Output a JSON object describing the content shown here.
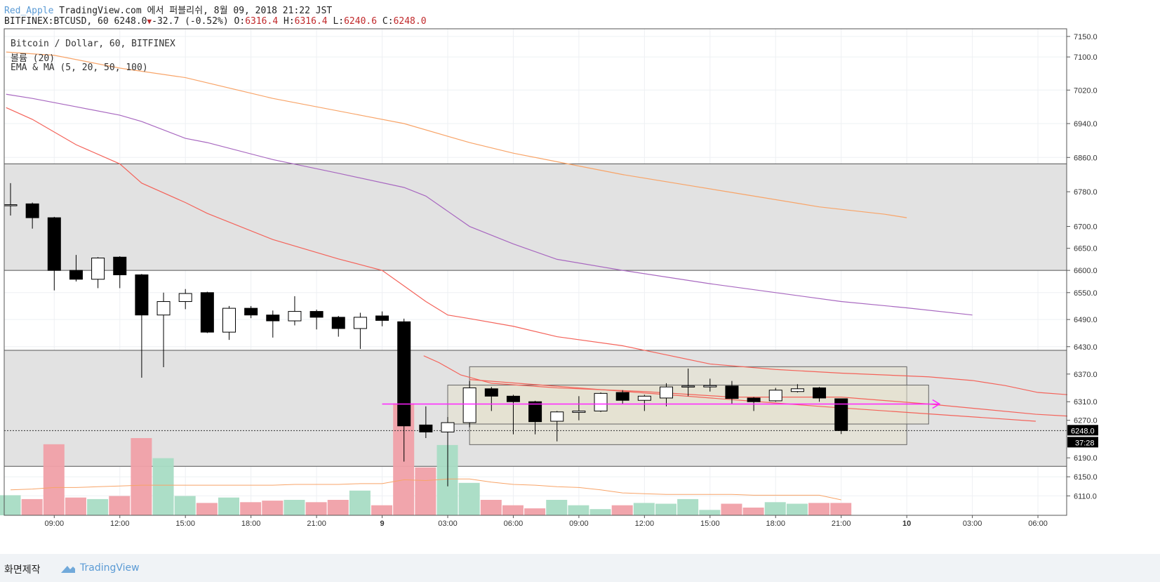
{
  "header": {
    "author": "Red_Apple",
    "published": "TradingView.com 에서 퍼블리쉬, 8월 09, 2018 21:22 JST",
    "symbol": "BITFINEX:BTCUSD, 60",
    "last": "6248.0",
    "change": "-32.7 (-0.52%)",
    "o_label": "O:",
    "o": "6316.4",
    "h_label": "H:",
    "h": "6316.4",
    "l_label": "L:",
    "l": "6240.6",
    "c_label": "C:",
    "c": "6248.0"
  },
  "legend": {
    "line1": "Bitcoin / Dollar, 60, BITFINEX",
    "line2": "볼륨 (20)",
    "line3": "EMA & MA (5, 20, 50, 100)"
  },
  "footer": {
    "made_by": "화면제작",
    "brand": "TradingView"
  },
  "colors": {
    "up_body": "#ffffff",
    "down_body": "#000000",
    "vol_up": "#a8dcc4",
    "vol_down": "#f0a0a8",
    "ema_red": "#f4635a",
    "ma_purple": "#a868c0",
    "ma_orange": "#f8a468",
    "vol_ma": "#f8a468",
    "arrow": "#ff22ff",
    "zone": "#e2e2e2",
    "range_box": "#e6e2ce",
    "price_tag": "#000000"
  },
  "chart_data": {
    "type": "candlestick",
    "title": "Bitcoin / Dollar, 60, BITFINEX",
    "y_ticks": [
      "7150.0",
      "7100.0",
      "7020.0",
      "6940.0",
      "6860.0",
      "6780.0",
      "6700.0",
      "6650.0",
      "6600.0",
      "6550.0",
      "6490.0",
      "6430.0",
      "6370.0",
      "6310.0",
      "6270.0",
      "6190.0",
      "6150.0",
      "6110.0"
    ],
    "y_scale": "log",
    "ylim": [
      6087,
      7155
    ],
    "x_ticks": [
      "09:00",
      "12:00",
      "15:00",
      "18:00",
      "21:00",
      "9",
      "03:00",
      "06:00",
      "09:00",
      "12:00",
      "15:00",
      "18:00",
      "21:00",
      "10",
      "03:00",
      "06:00"
    ],
    "bar_interval_hours": 1,
    "first_bar": "2018-08-08 07:00",
    "last_price_label": "6248.0",
    "countdown_label": "37:28",
    "candles": [
      {
        "t": "08-08 07:00",
        "o": 6750,
        "h": 6800,
        "l": 6725,
        "c": 6750
      },
      {
        "t": "08-08 08:00",
        "o": 6752,
        "h": 6755,
        "l": 6695,
        "c": 6720
      },
      {
        "t": "08-08 09:00",
        "o": 6720,
        "h": 6722,
        "l": 6555,
        "c": 6600
      },
      {
        "t": "08-08 10:00",
        "o": 6600,
        "h": 6635,
        "l": 6575,
        "c": 6580
      },
      {
        "t": "08-08 11:00",
        "o": 6580,
        "h": 6630,
        "l": 6560,
        "c": 6628
      },
      {
        "t": "08-08 12:00",
        "o": 6630,
        "h": 6632,
        "l": 6560,
        "c": 6590
      },
      {
        "t": "08-08 13:00",
        "o": 6590,
        "h": 6592,
        "l": 6362,
        "c": 6500
      },
      {
        "t": "08-08 14:00",
        "o": 6500,
        "h": 6550,
        "l": 6385,
        "c": 6530
      },
      {
        "t": "08-08 15:00",
        "o": 6530,
        "h": 6558,
        "l": 6513,
        "c": 6548
      },
      {
        "t": "08-08 16:00",
        "o": 6550,
        "h": 6552,
        "l": 6460,
        "c": 6462
      },
      {
        "t": "08-08 17:00",
        "o": 6462,
        "h": 6520,
        "l": 6445,
        "c": 6515
      },
      {
        "t": "08-08 18:00",
        "o": 6515,
        "h": 6520,
        "l": 6493,
        "c": 6500
      },
      {
        "t": "08-08 19:00",
        "o": 6500,
        "h": 6510,
        "l": 6450,
        "c": 6487
      },
      {
        "t": "08-08 20:00",
        "o": 6487,
        "h": 6542,
        "l": 6477,
        "c": 6508
      },
      {
        "t": "08-08 21:00",
        "o": 6508,
        "h": 6512,
        "l": 6468,
        "c": 6495
      },
      {
        "t": "08-08 22:00",
        "o": 6495,
        "h": 6498,
        "l": 6452,
        "c": 6470
      },
      {
        "t": "08-08 23:00",
        "o": 6470,
        "h": 6505,
        "l": 6425,
        "c": 6495
      },
      {
        "t": "08-09 00:00",
        "o": 6498,
        "h": 6508,
        "l": 6475,
        "c": 6488
      },
      {
        "t": "08-09 01:00",
        "o": 6485,
        "h": 6492,
        "l": 6182,
        "c": 6258
      },
      {
        "t": "08-09 02:00",
        "o": 6260,
        "h": 6300,
        "l": 6232,
        "c": 6245
      },
      {
        "t": "08-09 03:00",
        "o": 6245,
        "h": 6277,
        "l": 6130,
        "c": 6265
      },
      {
        "t": "08-09 04:00",
        "o": 6265,
        "h": 6355,
        "l": 6255,
        "c": 6340
      },
      {
        "t": "08-09 05:00",
        "o": 6338,
        "h": 6342,
        "l": 6290,
        "c": 6322
      },
      {
        "t": "08-09 06:00",
        "o": 6322,
        "h": 6325,
        "l": 6240,
        "c": 6310
      },
      {
        "t": "08-09 07:00",
        "o": 6310,
        "h": 6312,
        "l": 6240,
        "c": 6267
      },
      {
        "t": "08-09 08:00",
        "o": 6268,
        "h": 6290,
        "l": 6225,
        "c": 6288
      },
      {
        "t": "08-09 09:00",
        "o": 6287,
        "h": 6322,
        "l": 6270,
        "c": 6290
      },
      {
        "t": "08-09 10:00",
        "o": 6290,
        "h": 6330,
        "l": 6288,
        "c": 6328
      },
      {
        "t": "08-09 11:00",
        "o": 6330,
        "h": 6335,
        "l": 6305,
        "c": 6313
      },
      {
        "t": "08-09 12:00",
        "o": 6313,
        "h": 6325,
        "l": 6290,
        "c": 6322
      },
      {
        "t": "08-09 13:00",
        "o": 6318,
        "h": 6350,
        "l": 6300,
        "c": 6342
      },
      {
        "t": "08-09 14:00",
        "o": 6342,
        "h": 6382,
        "l": 6322,
        "c": 6344
      },
      {
        "t": "08-09 15:00",
        "o": 6342,
        "h": 6360,
        "l": 6332,
        "c": 6345
      },
      {
        "t": "08-09 16:00",
        "o": 6344,
        "h": 6355,
        "l": 6305,
        "c": 6317
      },
      {
        "t": "08-09 17:00",
        "o": 6318,
        "h": 6320,
        "l": 6290,
        "c": 6310
      },
      {
        "t": "08-09 18:00",
        "o": 6312,
        "h": 6340,
        "l": 6310,
        "c": 6335
      },
      {
        "t": "08-09 19:00",
        "o": 6332,
        "h": 6348,
        "l": 6330,
        "c": 6338
      },
      {
        "t": "08-09 20:00",
        "o": 6340,
        "h": 6342,
        "l": 6310,
        "c": 6318
      },
      {
        "t": "08-09 21:00",
        "o": 6316.4,
        "h": 6316.4,
        "l": 6240.6,
        "c": 6248
      }
    ],
    "volume": [
      0.26,
      0.21,
      0.92,
      0.23,
      0.21,
      0.25,
      1.0,
      0.74,
      0.25,
      0.16,
      0.23,
      0.17,
      0.19,
      0.2,
      0.17,
      0.2,
      0.32,
      0.13,
      1.45,
      0.62,
      0.91,
      0.42,
      0.2,
      0.13,
      0.09,
      0.2,
      0.13,
      0.08,
      0.13,
      0.16,
      0.15,
      0.21,
      0.07,
      0.15,
      0.1,
      0.17,
      0.15,
      0.16,
      0.16
    ],
    "volume_ma20": [
      0.33,
      0.34,
      0.36,
      0.36,
      0.37,
      0.38,
      0.39,
      0.39,
      0.39,
      0.39,
      0.39,
      0.39,
      0.39,
      0.4,
      0.4,
      0.4,
      0.41,
      0.41,
      0.46,
      0.45,
      0.47,
      0.47,
      0.43,
      0.4,
      0.39,
      0.37,
      0.36,
      0.33,
      0.29,
      0.28,
      0.27,
      0.27,
      0.27,
      0.27,
      0.26,
      0.26,
      0.26,
      0.26,
      0.2
    ],
    "ema5": [
      [
        18.9,
        6410
      ],
      [
        19.6,
        6395
      ],
      [
        20.6,
        6368
      ],
      [
        22.0,
        6350
      ],
      [
        25.0,
        6340
      ],
      [
        29.0,
        6332
      ],
      [
        33.0,
        6320
      ],
      [
        38.0,
        6320
      ],
      [
        42.0,
        6305
      ],
      [
        46.9,
        6283
      ],
      [
        60,
        6248
      ]
    ],
    "ma20": [
      [
        -0.2,
        6978
      ],
      [
        1,
        6950
      ],
      [
        3,
        6890
      ],
      [
        5,
        6845
      ],
      [
        6,
        6800
      ],
      [
        8,
        6755
      ],
      [
        9,
        6730
      ],
      [
        12,
        6670
      ],
      [
        15,
        6626
      ],
      [
        16,
        6613
      ],
      [
        17,
        6600
      ],
      [
        18,
        6565
      ],
      [
        19,
        6530
      ],
      [
        20,
        6500
      ],
      [
        21,
        6492
      ],
      [
        23,
        6475
      ],
      [
        25,
        6452
      ],
      [
        28,
        6432
      ],
      [
        30,
        6412
      ],
      [
        32,
        6392
      ],
      [
        35,
        6380
      ],
      [
        38,
        6372
      ],
      [
        42,
        6364
      ],
      [
        44,
        6356
      ],
      [
        45.5,
        6345
      ],
      [
        47,
        6330
      ],
      [
        51,
        6316
      ],
      [
        55,
        6305
      ],
      [
        58,
        6298
      ]
    ],
    "ma50": [
      [
        -0.2,
        7010
      ],
      [
        1,
        7000
      ],
      [
        3,
        6980
      ],
      [
        5,
        6960
      ],
      [
        6,
        6945
      ],
      [
        8,
        6905
      ],
      [
        9,
        6895
      ],
      [
        12,
        6855
      ],
      [
        15,
        6823
      ],
      [
        18,
        6790
      ],
      [
        19,
        6770
      ],
      [
        21,
        6700
      ],
      [
        23,
        6660
      ],
      [
        25,
        6625
      ],
      [
        28,
        6600
      ],
      [
        32,
        6570
      ],
      [
        35,
        6550
      ],
      [
        38,
        6530
      ],
      [
        41,
        6516
      ],
      [
        44,
        6500
      ]
    ],
    "ma100": [
      [
        -0.2,
        7112
      ],
      [
        2,
        7104
      ],
      [
        5,
        7073
      ],
      [
        8,
        7050
      ],
      [
        12,
        7000
      ],
      [
        16,
        6960
      ],
      [
        18,
        6940
      ],
      [
        21,
        6895
      ],
      [
        23,
        6870
      ],
      [
        25,
        6850
      ],
      [
        28,
        6820
      ],
      [
        31,
        6795
      ],
      [
        34,
        6770
      ],
      [
        37,
        6745
      ],
      [
        40,
        6728
      ],
      [
        41,
        6720
      ]
    ],
    "zones": [
      [
        6600,
        6845
      ],
      [
        6172,
        6422
      ]
    ],
    "range_boxes": [
      [
        6218,
        6386
      ],
      [
        6262,
        6346
      ]
    ],
    "arrow": {
      "price": 6305,
      "from": 17,
      "to": 42.5
    },
    "trend_line": [
      [
        21.0,
        6358
      ],
      [
        37.0,
        6300
      ],
      [
        46.9,
        6268
      ]
    ],
    "dotted_price": 6248
  }
}
